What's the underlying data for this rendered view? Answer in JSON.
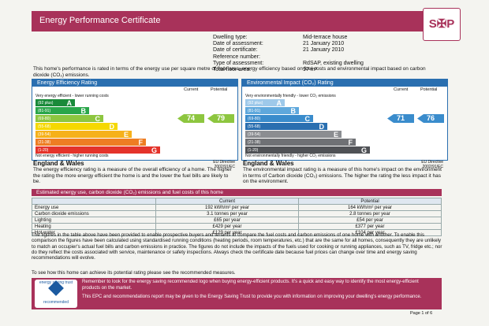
{
  "header": {
    "title": "Energy Performance Certificate",
    "logo": "S✠P"
  },
  "details": {
    "labels": [
      "Dwelling type:",
      "Date of assessment:",
      "Date of certificate:",
      "Reference number:",
      "Type of assessment:",
      "Total floor area:"
    ],
    "values": [
      "Mid-terrace house",
      "21 January 2010",
      "21 January 2010",
      "",
      "RdSAP, existing dwelling",
      "97 m²"
    ]
  },
  "intro": "This home's performance is rated in terms of the energy use per square metre of floor area, energy efficiency based on fuel costs and environmental impact based on carbon dioxide (CO₂) emissions.",
  "energy": {
    "title": "Energy Efficiency Rating",
    "col_current": "Current",
    "col_potential": "Potential",
    "top_hint": "Very energy efficient - lower running costs",
    "bottom_hint": "Not energy efficient - higher running costs",
    "bands": [
      {
        "range": "(92 plus)",
        "letter": "A",
        "color": "#1a8a3a"
      },
      {
        "range": "(81-91)",
        "letter": "B",
        "color": "#2aa64a"
      },
      {
        "range": "(69-80)",
        "letter": "C",
        "color": "#8dc63f"
      },
      {
        "range": "(55-68)",
        "letter": "D",
        "color": "#f5d800"
      },
      {
        "range": "(39-54)",
        "letter": "E",
        "color": "#f6b11a"
      },
      {
        "range": "(21-38)",
        "letter": "F",
        "color": "#ee7d23"
      },
      {
        "range": "(1-20)",
        "letter": "G",
        "color": "#e4332b"
      }
    ],
    "current": "74",
    "potential": "79",
    "current_color": "#8dc63f",
    "potential_color": "#8dc63f",
    "region": "England & Wales",
    "eu": "EU Directive 2002/91/EC",
    "description": "The energy efficiency rating is a measure of the overall efficiency of a home. The higher the rating the more energy efficient the home is and the lower the fuel bills are likely to be."
  },
  "environment": {
    "title": "Environmental Impact (CO₂) Rating",
    "col_current": "Current",
    "col_potential": "Potential",
    "top_hint": "Very environmentally friendly - lower CO₂ emissions",
    "bottom_hint": "Not environmentally friendly - higher CO₂ emissions",
    "bands": [
      {
        "range": "(92 plus)",
        "letter": "A",
        "color": "#9ec9ea"
      },
      {
        "range": "(81-91)",
        "letter": "B",
        "color": "#5fa8dc"
      },
      {
        "range": "(69-80)",
        "letter": "C",
        "color": "#3a8ccc"
      },
      {
        "range": "(55-68)",
        "letter": "D",
        "color": "#2a6fb0"
      },
      {
        "range": "(39-54)",
        "letter": "E",
        "color": "#8b8d91"
      },
      {
        "range": "(21-38)",
        "letter": "F",
        "color": "#6f7175"
      },
      {
        "range": "(1-20)",
        "letter": "G",
        "color": "#505256"
      }
    ],
    "current": "71",
    "potential": "76",
    "current_color": "#3a8ccc",
    "potential_color": "#3a8ccc",
    "region": "England & Wales",
    "eu": "EU Directive 2002/91/EC",
    "description": "The environmental impact rating is a measure of this home's impact on the environment in terms of Carbon dioxide (CO₂) emissions. The higher the rating the less impact it has on the environment."
  },
  "estimates": {
    "title": "Estimated energy use, carbon dioxide (CO₂) emissions and fuel costs of this home",
    "headers": [
      "",
      "Current",
      "Potential"
    ],
    "rows": [
      [
        "Energy use",
        "192 kWh/m² per year",
        "164 kWh/m² per year"
      ],
      [
        "Carbon dioxide emissions",
        "3.1 tonnes per year",
        "2.8 tonnes per year"
      ],
      [
        "Lighting",
        "£65 per year",
        "£54 per year"
      ],
      [
        "Heating",
        "£429 per year",
        "£377 per year"
      ],
      [
        "Hot water",
        "£129 per year",
        "£104 per year"
      ]
    ]
  },
  "body": "The figures in the table above have been provided to enable prospective buyers and tenants to compare the fuel costs and carbon emissions of one home with another. To enable this comparison the figures have been calculated using standardised running conditions (heating periods, room temperatures, etc.) that are the same for all homes, consequently they are unlikely to match an occupier's actual fuel bills and carbon emissions in practice. The figures do not include the impacts of the fuels used for cooking or running appliances, such as TV, fridge etc.; nor do they reflect the costs associated with service, maintenance or safety inspections. Always check the certificate date because fuel prices can change over time and energy saving recommendations will evolve.",
  "tail": "To see how this home can achieve its potential rating please see the recommended measures.",
  "footer": {
    "badge_top": "energy saving trust",
    "badge_bottom": "recommended",
    "line1": "Remember to look for the energy saving recommended logo when buying energy-efficient products. It's a quick and easy way to identify the most energy-efficient products on the market.",
    "line2": "This EPC and recommendations report may be given to the Energy Saving Trust to provide you with information on improving your dwelling's energy performance."
  },
  "page": "Page 1 of 6"
}
